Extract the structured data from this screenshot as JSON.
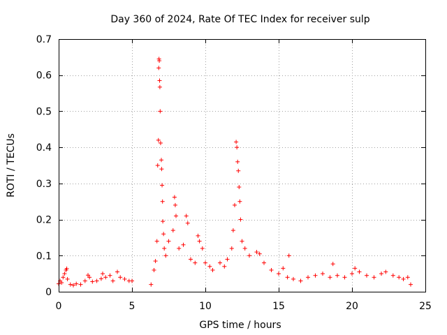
{
  "chart_data": {
    "type": "scatter",
    "title": "Day 360 of 2024, Rate Of TEC Index for receiver sulp",
    "xlabel": "GPS time / hours",
    "ylabel": "ROTI / TECUs",
    "xlim": [
      0,
      25
    ],
    "ylim": [
      0,
      0.7
    ],
    "xticks": [
      0,
      5,
      10,
      15,
      20,
      25
    ],
    "yticks": [
      0,
      0.1,
      0.2,
      0.3,
      0.4,
      0.5,
      0.6,
      0.7
    ],
    "grid": true,
    "marker": "+",
    "color": "#ff0000",
    "series": [
      {
        "name": "ROTI",
        "points": [
          [
            0.0,
            0.022
          ],
          [
            0.1,
            0.03
          ],
          [
            0.2,
            0.025
          ],
          [
            0.3,
            0.04
          ],
          [
            0.4,
            0.05
          ],
          [
            0.5,
            0.06
          ],
          [
            0.55,
            0.064
          ],
          [
            0.6,
            0.035
          ],
          [
            0.8,
            0.02
          ],
          [
            1.0,
            0.018
          ],
          [
            1.2,
            0.022
          ],
          [
            1.5,
            0.02
          ],
          [
            1.8,
            0.03
          ],
          [
            2.0,
            0.046
          ],
          [
            2.1,
            0.04
          ],
          [
            2.3,
            0.028
          ],
          [
            2.6,
            0.03
          ],
          [
            2.9,
            0.036
          ],
          [
            3.0,
            0.05
          ],
          [
            3.2,
            0.04
          ],
          [
            3.5,
            0.045
          ],
          [
            3.7,
            0.03
          ],
          [
            4.0,
            0.055
          ],
          [
            4.2,
            0.04
          ],
          [
            4.5,
            0.035
          ],
          [
            4.8,
            0.03
          ],
          [
            5.0,
            0.03
          ],
          [
            6.3,
            0.02
          ],
          [
            6.5,
            0.06
          ],
          [
            6.6,
            0.085
          ],
          [
            6.7,
            0.14
          ],
          [
            6.75,
            0.35
          ],
          [
            6.8,
            0.42
          ],
          [
            6.82,
            0.62
          ],
          [
            6.84,
            0.645
          ],
          [
            6.86,
            0.64
          ],
          [
            6.88,
            0.585
          ],
          [
            6.9,
            0.567
          ],
          [
            6.92,
            0.5
          ],
          [
            6.95,
            0.412
          ],
          [
            7.0,
            0.365
          ],
          [
            7.02,
            0.34
          ],
          [
            7.05,
            0.295
          ],
          [
            7.08,
            0.25
          ],
          [
            7.1,
            0.195
          ],
          [
            7.15,
            0.16
          ],
          [
            7.2,
            0.12
          ],
          [
            7.3,
            0.1
          ],
          [
            7.5,
            0.14
          ],
          [
            7.8,
            0.17
          ],
          [
            7.9,
            0.262
          ],
          [
            7.95,
            0.24
          ],
          [
            8.0,
            0.21
          ],
          [
            8.2,
            0.12
          ],
          [
            8.5,
            0.13
          ],
          [
            8.7,
            0.21
          ],
          [
            8.8,
            0.19
          ],
          [
            9.0,
            0.09
          ],
          [
            9.3,
            0.08
          ],
          [
            9.5,
            0.155
          ],
          [
            9.6,
            0.14
          ],
          [
            9.8,
            0.12
          ],
          [
            10.0,
            0.08
          ],
          [
            10.3,
            0.07
          ],
          [
            10.5,
            0.06
          ],
          [
            11.0,
            0.08
          ],
          [
            11.3,
            0.07
          ],
          [
            11.5,
            0.09
          ],
          [
            11.8,
            0.12
          ],
          [
            11.9,
            0.17
          ],
          [
            12.0,
            0.24
          ],
          [
            12.1,
            0.415
          ],
          [
            12.15,
            0.4
          ],
          [
            12.2,
            0.36
          ],
          [
            12.25,
            0.335
          ],
          [
            12.3,
            0.29
          ],
          [
            12.35,
            0.25
          ],
          [
            12.4,
            0.2
          ],
          [
            12.5,
            0.14
          ],
          [
            12.7,
            0.12
          ],
          [
            13.0,
            0.1
          ],
          [
            13.5,
            0.11
          ],
          [
            13.7,
            0.105
          ],
          [
            14.0,
            0.08
          ],
          [
            14.5,
            0.06
          ],
          [
            15.0,
            0.05
          ],
          [
            15.3,
            0.065
          ],
          [
            15.6,
            0.04
          ],
          [
            15.7,
            0.1
          ],
          [
            16.0,
            0.035
          ],
          [
            16.5,
            0.03
          ],
          [
            17.0,
            0.04
          ],
          [
            17.5,
            0.045
          ],
          [
            18.0,
            0.05
          ],
          [
            18.5,
            0.04
          ],
          [
            18.7,
            0.077
          ],
          [
            19.0,
            0.045
          ],
          [
            19.5,
            0.04
          ],
          [
            20.0,
            0.05
          ],
          [
            20.2,
            0.065
          ],
          [
            20.5,
            0.055
          ],
          [
            21.0,
            0.045
          ],
          [
            21.5,
            0.04
          ],
          [
            22.0,
            0.05
          ],
          [
            22.3,
            0.055
          ],
          [
            22.8,
            0.045
          ],
          [
            23.2,
            0.04
          ],
          [
            23.5,
            0.035
          ],
          [
            23.8,
            0.04
          ],
          [
            24.0,
            0.02
          ]
        ]
      }
    ]
  }
}
